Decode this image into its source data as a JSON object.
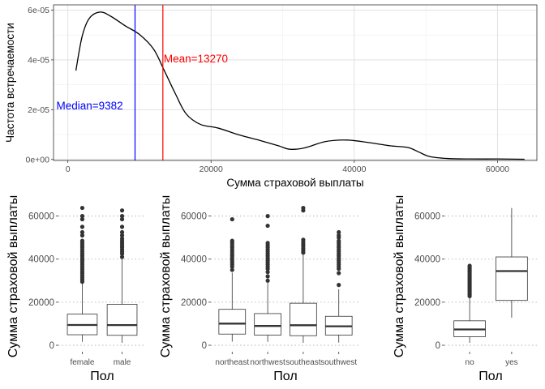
{
  "chart_data": [
    {
      "type": "line",
      "subtype": "density",
      "xlabel": "Сумма страховой выплаты",
      "ylabel": "Частота встречаемости",
      "xlim": [
        -2000,
        65500
      ],
      "ylim": [
        -4e-07,
        6.21e-05
      ],
      "x_ticks": [
        0,
        20000,
        40000,
        60000
      ],
      "x_tick_labels": [
        "0",
        "20000",
        "40000",
        "60000"
      ],
      "y_ticks": [
        0,
        2e-05,
        4e-05,
        6e-05
      ],
      "y_tick_labels": [
        "0e+00",
        "2e-05",
        "4e-05",
        "6e-05"
      ],
      "grid": true,
      "series": [
        {
          "color": "#000000",
          "x": [
            1122,
            2000,
            3000,
            4500,
            6000,
            8000,
            10000,
            12000,
            13500,
            15000,
            16500,
            18500,
            21000,
            24000,
            27000,
            29500,
            31000,
            33000,
            36000,
            39000,
            42000,
            45000,
            47500,
            49000,
            50500,
            53000,
            56000,
            60000,
            63770
          ],
          "y": [
            3.57e-05,
            4.95e-05,
            5.67e-05,
            5.92e-05,
            5.75e-05,
            5.37e-05,
            5.02e-05,
            4.42e-05,
            3.55e-05,
            2.65e-05,
            1.84e-05,
            1.41e-05,
            1.26e-05,
            9.8e-06,
            7.5e-06,
            5.4e-06,
            4.1e-06,
            4.6e-06,
            7.2e-06,
            7.8e-06,
            6.8e-06,
            5.5e-06,
            4.8e-06,
            3e-06,
            1.2e-06,
            4e-07,
            2e-07,
            2e-07,
            1e-07
          ]
        }
      ],
      "reference_lines": [
        {
          "label": "Median=9382",
          "x": 9382,
          "color": "#0000ff"
        },
        {
          "label": "Mean=13270",
          "x": 13270,
          "color": "#ff0000"
        }
      ]
    },
    {
      "type": "box",
      "xlabel": "Пол",
      "ylabel": "Сумма страховой выплаты",
      "ylim": [
        -3000,
        67000
      ],
      "y_ticks": [
        0,
        20000,
        40000,
        60000
      ],
      "y_tick_labels": [
        "0",
        "20000",
        "40000",
        "60000"
      ],
      "categories": [
        "female",
        "male"
      ],
      "boxes": [
        {
          "whisker_low": 1607,
          "q1": 4885,
          "median": 9413,
          "q3": 14454,
          "whisker_high": 28800
        },
        {
          "whisker_low": 1122,
          "q1": 4619,
          "median": 9370,
          "q3": 18989,
          "whisker_high": 40400
        }
      ],
      "outliers": [
        [
          29500,
          30500,
          31500,
          32500,
          33500,
          34500,
          35500,
          36500,
          37500,
          38500,
          39500,
          40500,
          41500,
          42500,
          43500,
          44500,
          45500,
          46500,
          47500,
          48500,
          51000,
          52500,
          55000,
          58500,
          60000,
          63770
        ],
        [
          41000,
          42500,
          43500,
          44500,
          45500,
          46500,
          47500,
          48500,
          49500,
          51000,
          52500,
          55000,
          58500,
          60000,
          62600
        ]
      ]
    },
    {
      "type": "box",
      "xlabel": "Пол",
      "ylabel": "Сумма страховой выплаты",
      "ylim": [
        -3000,
        67000
      ],
      "y_ticks": [
        0,
        20000,
        40000,
        60000
      ],
      "y_tick_labels": [
        "0",
        "20000",
        "40000",
        "60000"
      ],
      "categories": [
        "northeast",
        "northwest",
        "southeast",
        "southwest"
      ],
      "boxes": [
        {
          "whisker_low": 1694,
          "q1": 5194,
          "median": 10058,
          "q3": 16687,
          "whisker_high": 33700
        },
        {
          "whisker_low": 1621,
          "q1": 4720,
          "median": 8966,
          "q3": 14712,
          "whisker_high": 29000
        },
        {
          "whisker_low": 1122,
          "q1": 4440,
          "median": 9294,
          "q3": 19526,
          "whisker_high": 42000
        },
        {
          "whisker_low": 1242,
          "q1": 4751,
          "median": 8799,
          "q3": 13463,
          "whisker_high": 26000
        }
      ],
      "outliers": [
        [
          35000,
          36500,
          37500,
          38500,
          39500,
          40500,
          41500,
          42500,
          43500,
          44500,
          45500,
          46500,
          47500,
          48500,
          58500
        ],
        [
          30000,
          32000,
          34000,
          35500,
          36500,
          37500,
          38500,
          39500,
          40500,
          41500,
          42500,
          43500,
          44500,
          45500,
          46500,
          47500,
          55500,
          60000
        ],
        [
          43000,
          44000,
          45000,
          46000,
          47000,
          48000,
          49000,
          62600,
          63770
        ],
        [
          28000,
          33500,
          35500,
          36500,
          37500,
          38500,
          39500,
          40500,
          41500,
          42500,
          43500,
          44500,
          45500,
          46500,
          47500,
          48500,
          50000,
          51000,
          52500
        ]
      ]
    },
    {
      "type": "box",
      "xlabel": "Пол",
      "ylabel": "Сумма страховой выплаты",
      "ylim": [
        -3000,
        67000
      ],
      "y_ticks": [
        0,
        20000,
        40000,
        60000
      ],
      "y_tick_labels": [
        "0",
        "20000",
        "40000",
        "60000"
      ],
      "categories": [
        "no",
        "yes"
      ],
      "boxes": [
        {
          "whisker_low": 1122,
          "q1": 3986,
          "median": 7345,
          "q3": 11363,
          "whisker_high": 22400
        },
        {
          "whisker_low": 12829,
          "q1": 20826,
          "median": 34456,
          "q3": 41019,
          "whisker_high": 63770
        }
      ],
      "outliers": [
        [
          22800,
          23500,
          24200,
          24900,
          25600,
          26300,
          27000,
          27700,
          28400,
          29100,
          29800,
          30500,
          31200,
          31900,
          32600,
          33300,
          34000,
          34700,
          35400,
          36100,
          36900
        ],
        []
      ]
    }
  ]
}
